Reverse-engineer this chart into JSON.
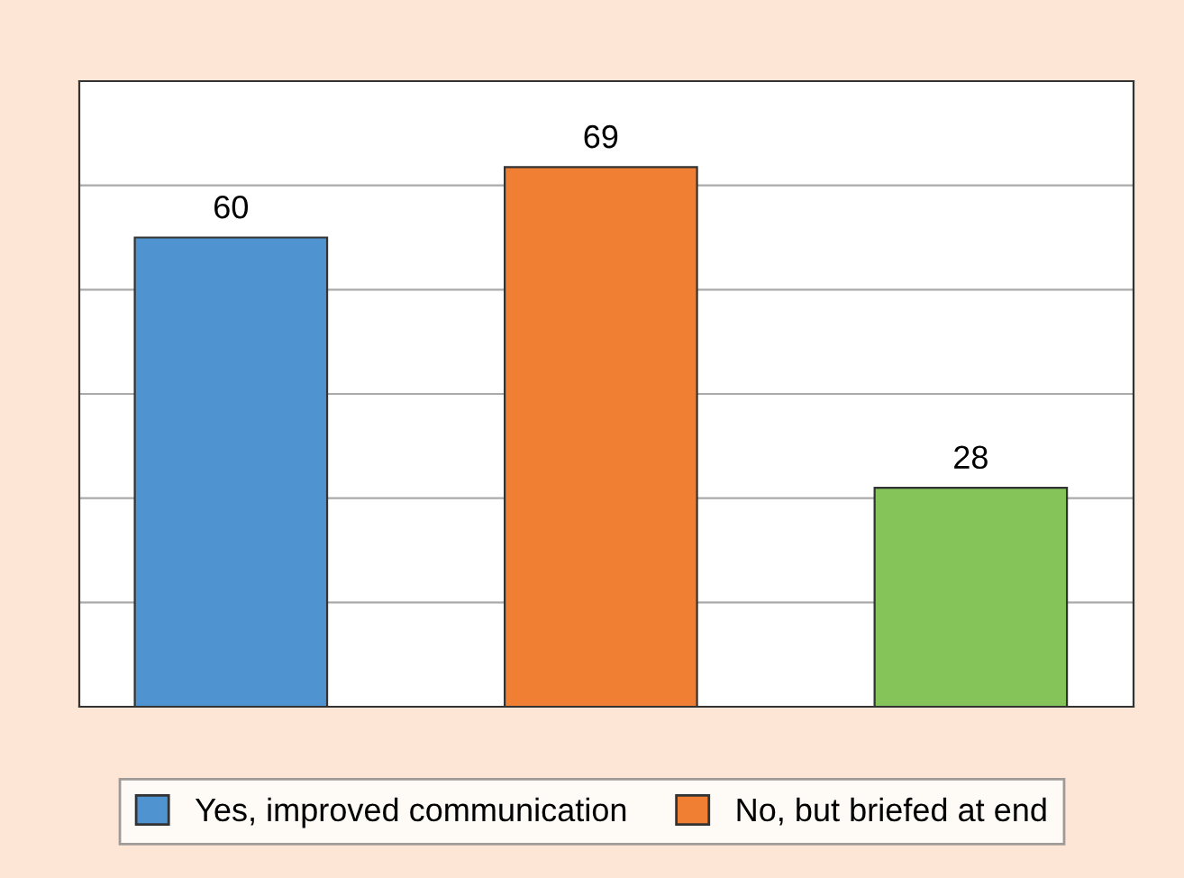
{
  "chart_data": {
    "type": "bar",
    "categories": [
      null,
      null,
      null
    ],
    "series": [
      {
        "name": "Yes, improved communication",
        "color": "#4f94d0",
        "values": [
          60,
          null,
          null
        ]
      },
      {
        "name": "No, but briefed at end",
        "color": "#f07f34",
        "values": [
          null,
          69,
          null
        ]
      },
      {
        "color": "#84c458",
        "values": [
          null,
          null,
          28
        ]
      }
    ],
    "ylim": [
      0,
      80
    ],
    "yticks": [
      {
        "value": 0,
        "label": null
      },
      {
        "value": 13.33,
        "label": null
      },
      {
        "value": 26.67,
        "label": null
      },
      {
        "value": 40,
        "label": null
      },
      {
        "value": 53.33,
        "label": null
      },
      {
        "value": 66.67,
        "label": null
      },
      {
        "value": 80,
        "label": null
      }
    ],
    "grid": "y",
    "data_labels": true,
    "legend": "bottom",
    "stacked": true
  }
}
